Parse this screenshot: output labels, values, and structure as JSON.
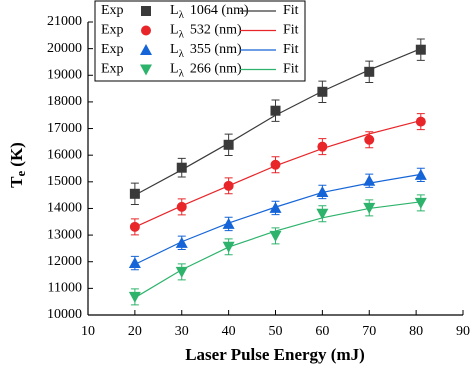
{
  "chart_data": {
    "type": "scatter",
    "x_label": "Laser Pulse Energy (mJ)",
    "y_label": {
      "main": "T",
      "sub": "e",
      "unit": "(K)"
    },
    "legend": {
      "exp": "Exp",
      "fit": "Fit",
      "prefix": "L",
      "subscript": "λ"
    },
    "x": [
      20,
      30,
      40,
      50,
      60,
      70,
      81
    ],
    "xlim": [
      10,
      90
    ],
    "xticks": [
      10,
      20,
      30,
      40,
      50,
      60,
      70,
      80,
      90
    ],
    "ylim": [
      10000,
      21000
    ],
    "yticks": [
      10000,
      11000,
      12000,
      13000,
      14000,
      15000,
      16000,
      17000,
      18000,
      19000,
      20000,
      21000
    ],
    "series": [
      {
        "name": "1064 (nm)",
        "color": "#3a3a3a",
        "marker": "square",
        "values": [
          14550,
          15530,
          16390,
          17670,
          18380,
          19130,
          19960
        ],
        "errors": [
          400,
          350,
          400,
          400,
          400,
          400,
          400
        ],
        "fit": [
          14500,
          15450,
          16450,
          17500,
          18400,
          19200,
          20000
        ]
      },
      {
        "name": "532 (nm)",
        "color": "#e8262a",
        "marker": "circle",
        "values": [
          13310,
          14060,
          14850,
          15640,
          16320,
          16580,
          17260
        ],
        "errors": [
          300,
          300,
          300,
          300,
          300,
          300,
          300
        ],
        "fit": [
          13300,
          14100,
          14850,
          15600,
          16250,
          16800,
          17300
        ]
      },
      {
        "name": "355 (nm)",
        "color": "#1565d8",
        "marker": "triangle-up",
        "values": [
          11950,
          12710,
          13420,
          14020,
          14620,
          15040,
          15260
        ],
        "errors": [
          250,
          250,
          250,
          250,
          250,
          250,
          250
        ],
        "fit": [
          11900,
          12750,
          13450,
          14050,
          14600,
          14950,
          15280
        ]
      },
      {
        "name": "266 (nm)",
        "color": "#2db36b",
        "marker": "triangle-down",
        "values": [
          10680,
          11620,
          12560,
          12970,
          13800,
          14020,
          14210
        ],
        "errors": [
          300,
          300,
          300,
          300,
          300,
          300,
          300
        ],
        "fit": [
          10650,
          11700,
          12550,
          13150,
          13650,
          14000,
          14250
        ]
      }
    ]
  }
}
